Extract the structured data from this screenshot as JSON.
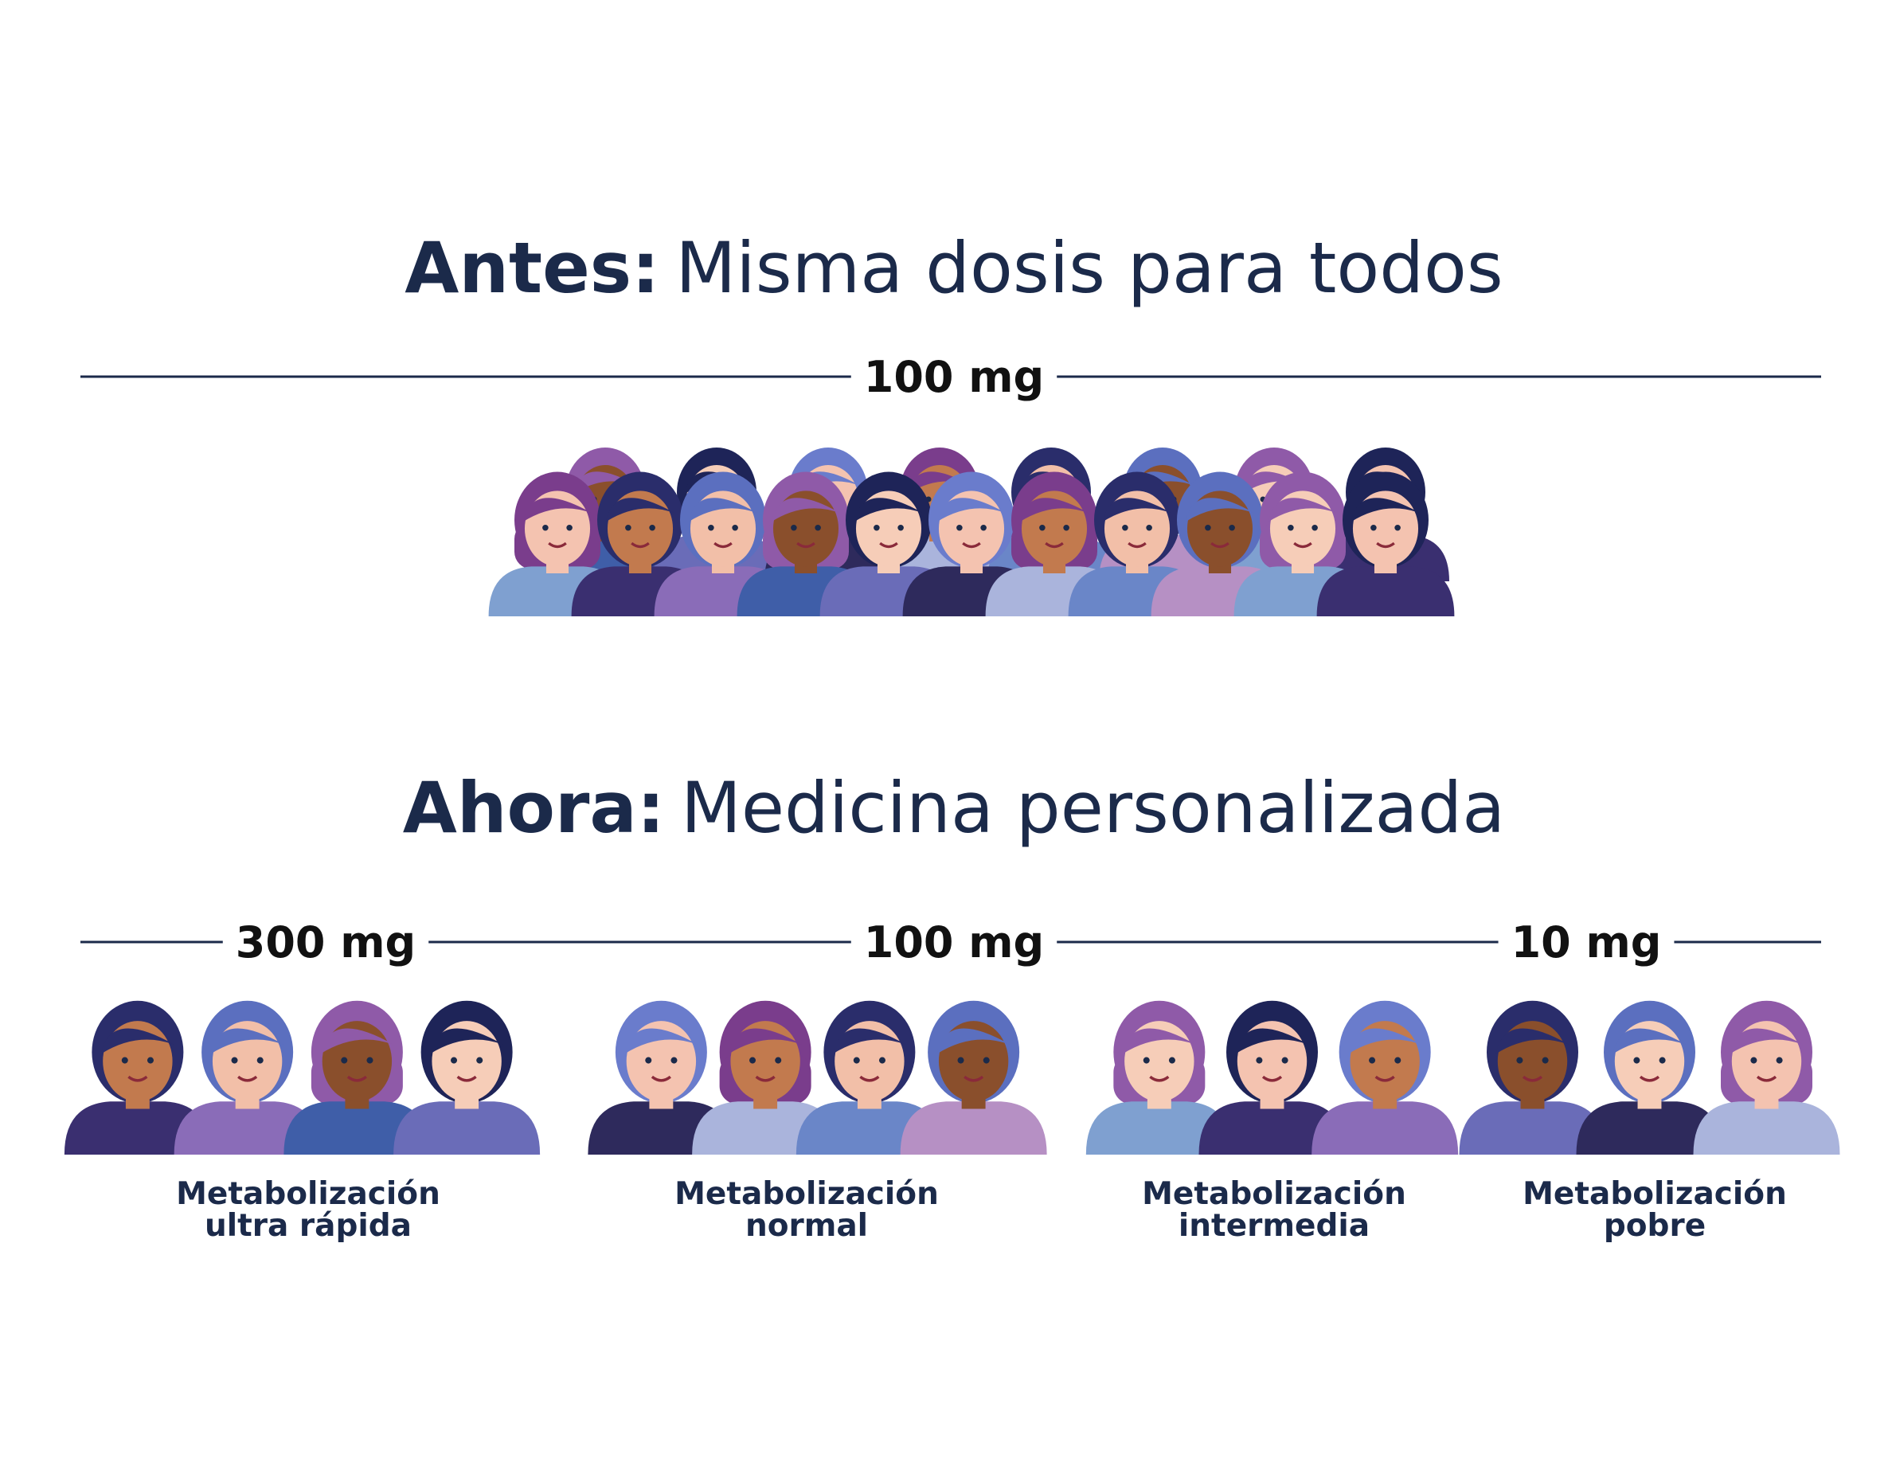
{
  "before": {
    "heading_bold": "Antes:",
    "heading": "Misma dosis para todos",
    "dose": "100 mg"
  },
  "now": {
    "heading_bold": "Ahora:",
    "heading": "Medicina personalizada",
    "groups": [
      {
        "dose": "300 mg",
        "label": [
          "Metabolización",
          "ultra rápida"
        ]
      },
      {
        "dose": "100 mg",
        "label": [
          "Metabolización",
          "normal"
        ]
      },
      {
        "dose": "10 mg",
        "label": [
          "Metabolización",
          "intermedia"
        ]
      },
      {
        "dose": null,
        "label": [
          "Metabolización",
          "pobre"
        ]
      }
    ]
  }
}
